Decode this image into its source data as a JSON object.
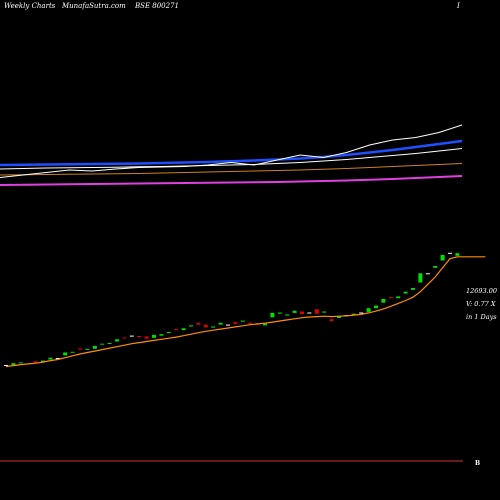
{
  "header": {
    "left": "Weekly Charts",
    "site": "MunafaSutra.com",
    "symbol": "BSE 800271",
    "right": "I"
  },
  "side_labels": {
    "price": "12693.00",
    "volume_ratio": "V: 0.77 X",
    "period": "in 1 Days"
  },
  "footer": {
    "mark": "B"
  },
  "colors": {
    "background": "#000000",
    "up_candle": "#00e000",
    "down_candle": "#e00000",
    "flat_candle": "#ffffff",
    "moving_average": "#ff8c00",
    "ma_blue": "#1e50ff",
    "ma_magenta": "#e040e0",
    "ma_orange_top": "#d08020",
    "ma_white": "#ffffff",
    "divider": "#cc3333"
  },
  "chart_data": [
    {
      "type": "line",
      "series": [
        {
          "color": "#1e50ff",
          "values": [
            7900,
            7905,
            7910,
            7915,
            7920,
            7925,
            7930,
            7940,
            7950,
            7960,
            7975,
            7990,
            8010,
            8030,
            8060,
            8100,
            8150,
            8200,
            8260,
            8320,
            8380
          ]
        },
        {
          "color": "#ffffff",
          "values": [
            7820,
            7830,
            7840,
            7845,
            7850,
            7855,
            7865,
            7870,
            7880,
            7890,
            7900,
            7910,
            7930,
            7950,
            7980,
            8010,
            8050,
            8090,
            8130,
            8180,
            8230
          ]
        },
        {
          "color": "#d08020",
          "values": [
            7700,
            7705,
            7710,
            7715,
            7720,
            7725,
            7730,
            7740,
            7750,
            7760,
            7770,
            7780,
            7790,
            7800,
            7815,
            7830,
            7850,
            7870,
            7890,
            7910,
            7930
          ]
        },
        {
          "color": "#ffffff",
          "values": [
            7650,
            7700,
            7750,
            7800,
            7780,
            7820,
            7850,
            7860,
            7870,
            7900,
            7950,
            7900,
            8000,
            8100,
            8050,
            8150,
            8300,
            8400,
            8450,
            8550,
            8700
          ]
        },
        {
          "color": "#e040e0",
          "values": [
            7500,
            7505,
            7510,
            7515,
            7520,
            7525,
            7530,
            7535,
            7540,
            7545,
            7550,
            7555,
            7560,
            7570,
            7580,
            7590,
            7605,
            7620,
            7640,
            7660,
            7680
          ]
        }
      ]
    },
    {
      "type": "candlestick",
      "points": [
        {
          "o": 3001,
          "c": 3000
        },
        {
          "o": 3000,
          "c": 3050
        },
        {
          "o": 3050,
          "c": 3070
        },
        {
          "o": 3020,
          "c": 3040
        },
        {
          "o": 3100,
          "c": 3060
        },
        {
          "o": 3080,
          "c": 3120
        },
        {
          "o": 3150,
          "c": 3200
        },
        {
          "o": 3190,
          "c": 3191
        },
        {
          "o": 3260,
          "c": 3340
        },
        {
          "o": 3340,
          "c": 3360
        },
        {
          "o": 3450,
          "c": 3420
        },
        {
          "o": 3420,
          "c": 3440
        },
        {
          "o": 3440,
          "c": 3520
        },
        {
          "o": 3560,
          "c": 3580
        },
        {
          "o": 3580,
          "c": 3600
        },
        {
          "o": 3640,
          "c": 3700
        },
        {
          "o": 3750,
          "c": 3730
        },
        {
          "o": 3800,
          "c": 3801
        },
        {
          "o": 3790,
          "c": 3760
        },
        {
          "o": 3780,
          "c": 3720
        },
        {
          "o": 3740,
          "c": 3820
        },
        {
          "o": 3800,
          "c": 3840
        },
        {
          "o": 3880,
          "c": 3900
        },
        {
          "o": 3980,
          "c": 3960
        },
        {
          "o": 3950,
          "c": 4000
        },
        {
          "o": 4050,
          "c": 4080
        },
        {
          "o": 4150,
          "c": 4100
        },
        {
          "o": 4100,
          "c": 4030
        },
        {
          "o": 4020,
          "c": 4050
        },
        {
          "o": 4100,
          "c": 4150
        },
        {
          "o": 4100,
          "c": 4101
        },
        {
          "o": 4170,
          "c": 4120
        },
        {
          "o": 4180,
          "c": 4210
        },
        {
          "o": 4150,
          "c": 4120
        },
        {
          "o": 4120,
          "c": 4100
        },
        {
          "o": 4080,
          "c": 4130
        },
        {
          "o": 4300,
          "c": 4420
        },
        {
          "o": 4400,
          "c": 4430
        },
        {
          "o": 4350,
          "c": 4380
        },
        {
          "o": 4420,
          "c": 4480
        },
        {
          "o": 4460,
          "c": 4390
        },
        {
          "o": 4430,
          "c": 4431
        },
        {
          "o": 4520,
          "c": 4400
        },
        {
          "o": 4430,
          "c": 4460
        },
        {
          "o": 4250,
          "c": 4200
        },
        {
          "o": 4280,
          "c": 4330
        },
        {
          "o": 4360,
          "c": 4361
        },
        {
          "o": 4360,
          "c": 4400
        },
        {
          "o": 4430,
          "c": 4431
        },
        {
          "o": 4450,
          "c": 4550
        },
        {
          "o": 4550,
          "c": 4620
        },
        {
          "o": 4700,
          "c": 4800
        },
        {
          "o": 4850,
          "c": 4820
        },
        {
          "o": 4820,
          "c": 4870
        },
        {
          "o": 4950,
          "c": 5000
        },
        {
          "o": 5050,
          "c": 5100
        },
        {
          "o": 5250,
          "c": 5500
        },
        {
          "o": 5500,
          "c": 5501
        },
        {
          "o": 5650,
          "c": 5700
        },
        {
          "o": 5850,
          "c": 6000
        },
        {
          "o": 6060,
          "c": 6061
        },
        {
          "o": 5980,
          "c": 6050
        }
      ],
      "moving_average": [
        2960,
        2985,
        3010,
        3030,
        3050,
        3080,
        3120,
        3150,
        3200,
        3250,
        3300,
        3340,
        3380,
        3420,
        3460,
        3500,
        3540,
        3580,
        3610,
        3640,
        3670,
        3700,
        3730,
        3760,
        3800,
        3840,
        3880,
        3920,
        3950,
        3980,
        4010,
        4040,
        4070,
        4100,
        4120,
        4140,
        4170,
        4200,
        4230,
        4260,
        4290,
        4310,
        4320,
        4330,
        4320,
        4330,
        4340,
        4360,
        4380,
        4420,
        4470,
        4530,
        4600,
        4680,
        4760,
        4850,
        5000,
        5200,
        5400,
        5650,
        5900,
        5950
      ],
      "ma_tail": [
        5950,
        5950
      ]
    }
  ]
}
